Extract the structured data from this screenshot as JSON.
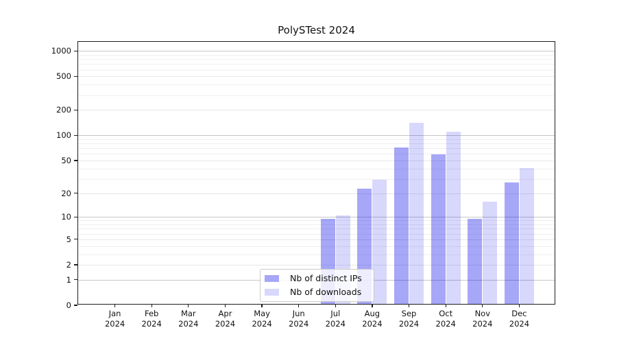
{
  "figure": {
    "title": "PolySTest 2024"
  },
  "chart_data": {
    "type": "bar",
    "title": "PolySTest 2024",
    "xlabel": "",
    "ylabel": "",
    "yscale": "log1p",
    "ylim": [
      0,
      1280
    ],
    "grid": "both",
    "legend_position": "lower-center-inside",
    "categories": [
      "Jan 2024",
      "Feb 2024",
      "Mar 2024",
      "Apr 2024",
      "May 2024",
      "Jun 2024",
      "Jul 2024",
      "Aug 2024",
      "Sep 2024",
      "Oct 2024",
      "Nov 2024",
      "Dec 2024"
    ],
    "series": [
      {
        "name": "Nb of distinct IPs",
        "legend_color": "#a7a7f8",
        "fill": "rgba(10,10,235,0.36)",
        "values": [
          0,
          0,
          0,
          0,
          0,
          0,
          9,
          22,
          69,
          57,
          9,
          26
        ]
      },
      {
        "name": "Nb of downloads",
        "legend_color": "#d8d8fc",
        "fill": "rgba(10,10,235,0.16)",
        "values": [
          0,
          0,
          0,
          0,
          0,
          0,
          10,
          28,
          135,
          107,
          15,
          39
        ]
      }
    ],
    "y_ticks": [
      0,
      1,
      2,
      5,
      10,
      20,
      50,
      100,
      200,
      500,
      1000
    ],
    "y_major_ticks": [
      1,
      10,
      100,
      1000
    ],
    "y_minor_ticks": [
      3,
      4,
      6,
      7,
      8,
      9,
      30,
      40,
      60,
      70,
      80,
      90,
      300,
      400,
      600,
      700,
      800,
      900
    ],
    "colors": {
      "grid_major": "#c6c6c6",
      "grid_minor": "#efefef",
      "axis": "#1c1c1c",
      "text": "#111111"
    }
  }
}
